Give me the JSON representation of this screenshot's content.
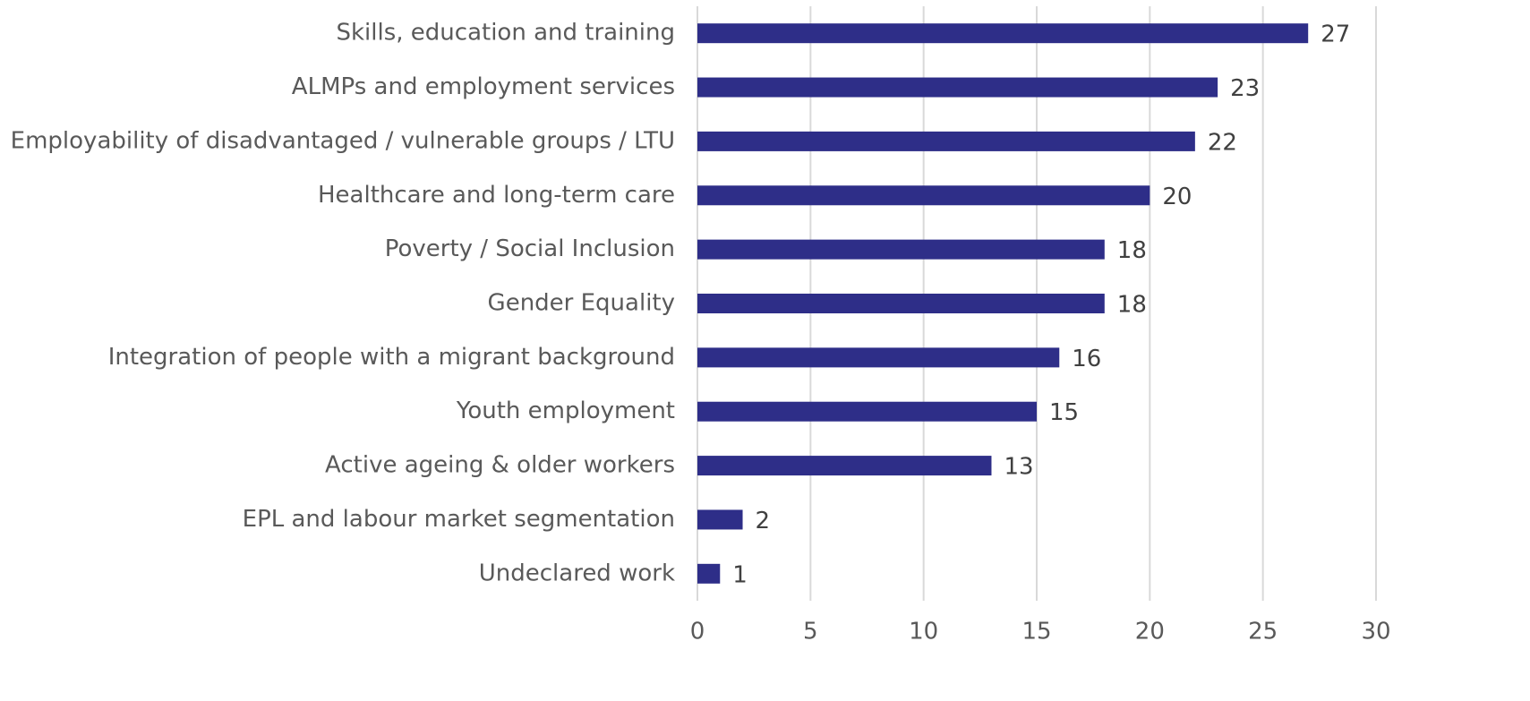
{
  "chart_data": {
    "type": "bar",
    "orientation": "horizontal",
    "categories": [
      "Skills, education and training",
      "ALMPs and employment services",
      "Employability of disadvantaged / vulnerable groups / LTU",
      "Healthcare and long-term care",
      "Poverty / Social Inclusion",
      "Gender Equality",
      "Integration of people with a migrant background",
      "Youth employment",
      "Active ageing & older workers",
      "EPL and labour market segmentation",
      "Undeclared work"
    ],
    "values": [
      27,
      23,
      22,
      20,
      18,
      18,
      16,
      15,
      13,
      2,
      1
    ],
    "color": "#2e2e88",
    "xlim": [
      0,
      30
    ],
    "xticks": [
      0,
      5,
      10,
      15,
      20,
      25,
      30
    ],
    "grid": true
  }
}
